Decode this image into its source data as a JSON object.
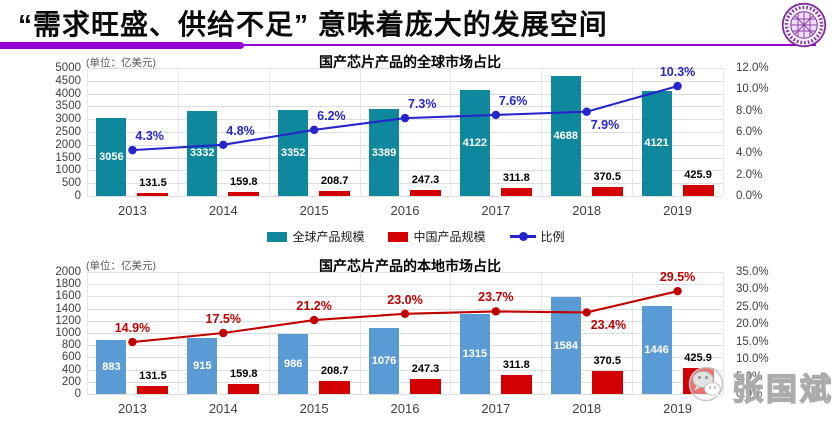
{
  "header": {
    "title": "“需求旺盛、供给不足” 意味着庞大的发展空间",
    "accent_color": "#9400D3",
    "logo_icon": "university-seal-icon"
  },
  "watermark": {
    "icon": "wechat-icon",
    "text": "张国斌"
  },
  "chart_data": [
    {
      "type": "bar+line",
      "title": "国产芯片产品的全球市场占比",
      "unit_label": "(单位：亿美元)",
      "categories": [
        "2013",
        "2014",
        "2015",
        "2016",
        "2017",
        "2018",
        "2019"
      ],
      "series": [
        {
          "name": "全球产品规模",
          "kind": "bar",
          "axis": "left",
          "color": "#0F879C",
          "values": [
            3056,
            3332,
            3352,
            3389,
            4122,
            4688,
            4121
          ],
          "labels": [
            "3056",
            "3332",
            "3352",
            "3389",
            "4122",
            "4688",
            "4121"
          ],
          "label_color": "#ffffff",
          "label_placement": "inside"
        },
        {
          "name": "中国产品规模",
          "kind": "bar",
          "axis": "left",
          "color": "#D20000",
          "values": [
            131.5,
            159.8,
            208.7,
            247.3,
            311.8,
            370.5,
            425.9
          ],
          "labels": [
            "131.5",
            "159.8",
            "208.7",
            "247.3",
            "311.8",
            "370.5",
            "425.9"
          ],
          "label_color": "#000000",
          "label_placement": "above"
        },
        {
          "name": "比例",
          "kind": "line",
          "axis": "right",
          "color": "#2525CB",
          "values": [
            4.3,
            4.8,
            6.2,
            7.3,
            7.6,
            7.9,
            10.3
          ],
          "labels": [
            "4.3%",
            "4.8%",
            "6.2%",
            "7.3%",
            "7.6%",
            "7.9%",
            "10.3%"
          ],
          "label_positions": [
            "above",
            "above",
            "above",
            "above",
            "above",
            "below",
            "above-center"
          ]
        }
      ],
      "left_axis": {
        "min": 0,
        "max": 5000,
        "step": 500,
        "ticks": [
          "5000",
          "4500",
          "4000",
          "3500",
          "3000",
          "2500",
          "2000",
          "1500",
          "1000",
          "500",
          "0"
        ]
      },
      "right_axis": {
        "min": 0,
        "max": 12,
        "step": 2,
        "ticks": [
          "12.0%",
          "10.0%",
          "8.0%",
          "6.0%",
          "4.0%",
          "2.0%",
          "0.0%"
        ]
      },
      "grid": true,
      "legend": {
        "show": true,
        "position": "bottom"
      }
    },
    {
      "type": "bar+line",
      "title": "国产芯片产品的本地市场占比",
      "unit_label": "(单位：亿美元)",
      "categories": [
        "2013",
        "2014",
        "2015",
        "2016",
        "2017",
        "2018",
        "2019"
      ],
      "series": [
        {
          "kind": "bar",
          "axis": "left",
          "color": "#5B9BD5",
          "values": [
            883,
            915,
            986,
            1076,
            1315,
            1584,
            1446
          ],
          "labels": [
            "883",
            "915",
            "986",
            "1076",
            "1315",
            "1584",
            "1446"
          ],
          "label_color": "#ffffff",
          "label_placement": "inside"
        },
        {
          "kind": "bar",
          "axis": "left",
          "color": "#D20000",
          "values": [
            131.5,
            159.8,
            208.7,
            247.3,
            311.8,
            370.5,
            425.9
          ],
          "labels": [
            "131.5",
            "159.8",
            "208.7",
            "247.3",
            "311.8",
            "370.5",
            "425.9"
          ],
          "label_color": "#000000",
          "label_placement": "above"
        },
        {
          "kind": "line",
          "axis": "right",
          "color": "#C00000",
          "values": [
            14.9,
            17.5,
            21.2,
            23.0,
            23.7,
            23.4,
            29.5
          ],
          "labels": [
            "14.9%",
            "17.5%",
            "21.2%",
            "23.0%",
            "23.7%",
            "23.4%",
            "29.5%"
          ],
          "label_positions": [
            "above-center",
            "above-center",
            "above-center",
            "above-center",
            "above-center",
            "below",
            "above-center"
          ]
        }
      ],
      "left_axis": {
        "min": 0,
        "max": 2000,
        "step": 200,
        "ticks": [
          "2000",
          "1800",
          "1600",
          "1400",
          "1200",
          "1000",
          "800",
          "600",
          "400",
          "200",
          "0"
        ]
      },
      "right_axis": {
        "min": 0,
        "max": 35,
        "step": 5,
        "ticks": [
          "35.0%",
          "30.0%",
          "25.0%",
          "20.0%",
          "15.0%",
          "10.0%",
          "5.0%",
          "0.0%"
        ]
      },
      "grid": true,
      "legend": {
        "show": false
      }
    }
  ]
}
